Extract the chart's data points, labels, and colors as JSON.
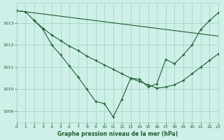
{
  "title": "Graphe pression niveau de la mer (hPa)",
  "bg_color": "#cef0e8",
  "grid_color": "#9ecfbe",
  "line_color": "#1e5c30",
  "xlim": [
    0,
    23
  ],
  "ylim": [
    1008.5,
    1013.9
  ],
  "yticks": [
    1009,
    1010,
    1011,
    1012,
    1013
  ],
  "xticks": [
    0,
    1,
    2,
    3,
    4,
    5,
    6,
    7,
    8,
    9,
    10,
    11,
    12,
    13,
    14,
    15,
    16,
    17,
    18,
    19,
    20,
    21,
    22,
    23
  ],
  "series_main": {
    "x": [
      0,
      1,
      2,
      3,
      4,
      5,
      6,
      7,
      8,
      9,
      10,
      11,
      12,
      13,
      14,
      15,
      16,
      17,
      18,
      19,
      20,
      21,
      22,
      23
    ],
    "y": [
      1013.55,
      1013.5,
      1013.1,
      1012.7,
      1012.0,
      1011.55,
      1011.05,
      1010.55,
      1010.0,
      1009.45,
      1009.35,
      1008.75,
      1009.55,
      1010.5,
      1010.45,
      1010.1,
      1010.25,
      1011.35,
      1011.15,
      1011.55,
      1012.0,
      1012.7,
      1013.1,
      1013.45
    ]
  },
  "series_upper": {
    "x": [
      0,
      1,
      2,
      3,
      4,
      5,
      6,
      7,
      8,
      9,
      10,
      11,
      12,
      13,
      14,
      15,
      16,
      17,
      18,
      19,
      20,
      21,
      22,
      23
    ],
    "y": [
      1013.55,
      1013.5,
      1013.45,
      1013.4,
      1013.35,
      1013.3,
      1013.25,
      1013.2,
      1013.15,
      1013.1,
      1013.05,
      1013.0,
      1012.95,
      1012.9,
      1012.85,
      1012.8,
      1012.75,
      1012.7,
      1012.65,
      1012.6,
      1012.55,
      1012.5,
      1012.45,
      1012.4
    ]
  },
  "series_mid": {
    "x": [
      2,
      3,
      4,
      5,
      6,
      7,
      8,
      9,
      10,
      11,
      12,
      13,
      14,
      15,
      16,
      17,
      18,
      19,
      20,
      21,
      22,
      23
    ],
    "y": [
      1013.1,
      1012.75,
      1012.45,
      1012.2,
      1011.95,
      1011.75,
      1011.5,
      1011.3,
      1011.1,
      1010.9,
      1010.7,
      1010.5,
      1010.35,
      1010.2,
      1010.05,
      1010.1,
      1010.2,
      1010.4,
      1010.7,
      1011.0,
      1011.3,
      1011.6
    ]
  }
}
